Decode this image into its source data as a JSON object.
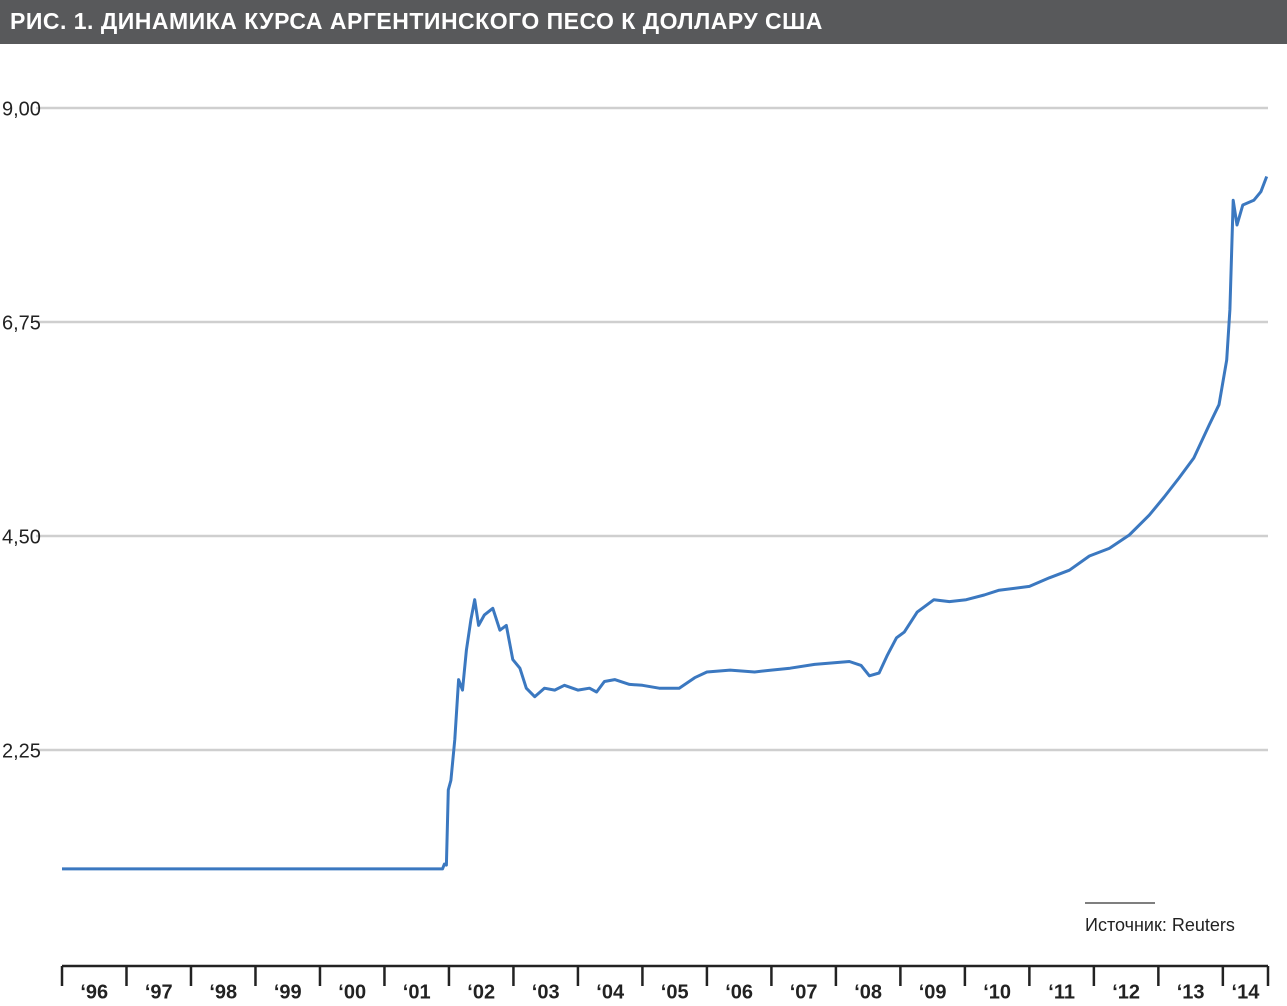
{
  "chart_data": {
    "type": "line",
    "title": "РИС. 1. ДИНАМИКА КУРСА АРГЕНТИНСКОГО ПЕСО К ДОЛЛАРУ США",
    "source": "Источник: Reuters",
    "color": "#3b78c0",
    "grid": true,
    "x": [
      1996,
      2001.9,
      2001.93,
      2001.96,
      2001.99,
      2002.03,
      2002.09,
      2002.15,
      2002.21,
      2002.27,
      2002.34,
      2002.4,
      2002.46,
      2002.55,
      2002.68,
      2002.79,
      2002.89,
      2002.99,
      2003.1,
      2003.2,
      2003.33,
      2003.48,
      2003.64,
      2003.79,
      2004.0,
      2004.18,
      2004.29,
      2004.41,
      2004.57,
      2004.8,
      2005.0,
      2005.26,
      2005.57,
      2005.81,
      2006.0,
      2006.36,
      2006.74,
      2007.0,
      2007.29,
      2007.67,
      2008.21,
      2008.39,
      2008.52,
      2008.67,
      2008.8,
      2008.94,
      2009.06,
      2009.26,
      2009.52,
      2009.76,
      2010.02,
      2010.3,
      2010.53,
      2011.0,
      2011.31,
      2011.62,
      2011.93,
      2012.24,
      2012.55,
      2012.86,
      2013.09,
      2013.32,
      2013.55,
      2013.79,
      2013.94,
      2014.06,
      2014.11,
      2014.16,
      2014.22,
      2014.31,
      2014.48,
      2014.59,
      2014.68
    ],
    "values": [
      1.0,
      1.0,
      1.05,
      1.04,
      1.83,
      1.93,
      2.36,
      2.99,
      2.88,
      3.3,
      3.62,
      3.83,
      3.56,
      3.67,
      3.74,
      3.51,
      3.56,
      3.2,
      3.11,
      2.9,
      2.81,
      2.9,
      2.88,
      2.93,
      2.88,
      2.9,
      2.86,
      2.97,
      2.99,
      2.94,
      2.93,
      2.9,
      2.9,
      3.01,
      3.07,
      3.09,
      3.07,
      3.09,
      3.11,
      3.15,
      3.18,
      3.14,
      3.03,
      3.06,
      3.25,
      3.43,
      3.49,
      3.7,
      3.83,
      3.81,
      3.83,
      3.88,
      3.93,
      3.97,
      4.06,
      4.14,
      4.29,
      4.37,
      4.51,
      4.72,
      4.91,
      5.11,
      5.32,
      5.67,
      5.88,
      6.35,
      6.88,
      8.03,
      7.77,
      7.98,
      8.03,
      8.12,
      8.28
    ],
    "xlim": [
      1996,
      2014.7
    ],
    "xticks": [
      {
        "value": 1996,
        "label": "‘96"
      },
      {
        "value": 1997,
        "label": "‘97"
      },
      {
        "value": 1998,
        "label": "‘98"
      },
      {
        "value": 1999,
        "label": "‘99"
      },
      {
        "value": 2000,
        "label": "‘00"
      },
      {
        "value": 2001,
        "label": "‘01"
      },
      {
        "value": 2002,
        "label": "‘02"
      },
      {
        "value": 2003,
        "label": "‘03"
      },
      {
        "value": 2004,
        "label": "‘04"
      },
      {
        "value": 2005,
        "label": "‘05"
      },
      {
        "value": 2006,
        "label": "‘06"
      },
      {
        "value": 2007,
        "label": "‘07"
      },
      {
        "value": 2008,
        "label": "‘08"
      },
      {
        "value": 2009,
        "label": "‘09"
      },
      {
        "value": 2010,
        "label": "‘10"
      },
      {
        "value": 2011,
        "label": "‘11"
      },
      {
        "value": 2012,
        "label": "‘12"
      },
      {
        "value": 2013,
        "label": "‘13"
      },
      {
        "value": 2014,
        "label": "‘14"
      }
    ],
    "ylim": [
      0,
      9
    ],
    "yticks": [
      {
        "value": 2.25,
        "label": "2,25"
      },
      {
        "value": 4.5,
        "label": "4,50"
      },
      {
        "value": 6.75,
        "label": "6,75"
      },
      {
        "value": 9,
        "label": "9,00"
      }
    ]
  }
}
